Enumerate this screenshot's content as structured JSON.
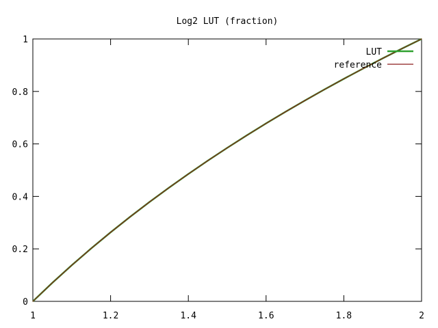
{
  "chart_data": {
    "type": "line",
    "title": "Log2 LUT (fraction)",
    "xlabel": "",
    "ylabel": "",
    "xlim": [
      1,
      2
    ],
    "ylim": [
      0,
      1
    ],
    "xticks": [
      1,
      1.2,
      1.4,
      1.6,
      1.8,
      2
    ],
    "xtick_labels": [
      "1",
      "1.2",
      "1.4",
      "1.6",
      "1.8",
      "2"
    ],
    "yticks": [
      0,
      0.2,
      0.4,
      0.6,
      0.8,
      1
    ],
    "ytick_labels": [
      "0",
      "0.2",
      "0.4",
      "0.6",
      "0.8",
      "1"
    ],
    "grid": false,
    "legend_position": "top-right",
    "series": [
      {
        "name": "LUT",
        "color": "#2ea02e",
        "x": [
          1.0,
          1.05,
          1.1,
          1.15,
          1.2,
          1.25,
          1.3,
          1.35,
          1.4,
          1.45,
          1.5,
          1.55,
          1.6,
          1.65,
          1.7,
          1.75,
          1.8,
          1.85,
          1.9,
          1.95,
          2.0
        ],
        "values": [
          0.0,
          0.0704,
          0.1375,
          0.2016,
          0.263,
          0.3219,
          0.3785,
          0.433,
          0.4854,
          0.5361,
          0.585,
          0.6323,
          0.6781,
          0.7225,
          0.7655,
          0.8074,
          0.848,
          0.8875,
          0.926,
          0.9635,
          1.0
        ]
      },
      {
        "name": "reference",
        "color": "#8b1a1a",
        "x": [
          1.0,
          1.05,
          1.1,
          1.15,
          1.2,
          1.25,
          1.3,
          1.35,
          1.4,
          1.45,
          1.5,
          1.55,
          1.6,
          1.65,
          1.7,
          1.75,
          1.8,
          1.85,
          1.9,
          1.95,
          2.0
        ],
        "values": [
          0.0,
          0.0704,
          0.1375,
          0.2016,
          0.263,
          0.3219,
          0.3785,
          0.433,
          0.4854,
          0.5361,
          0.585,
          0.6323,
          0.6781,
          0.7225,
          0.7655,
          0.8074,
          0.848,
          0.8875,
          0.926,
          0.9635,
          1.0
        ]
      }
    ]
  }
}
